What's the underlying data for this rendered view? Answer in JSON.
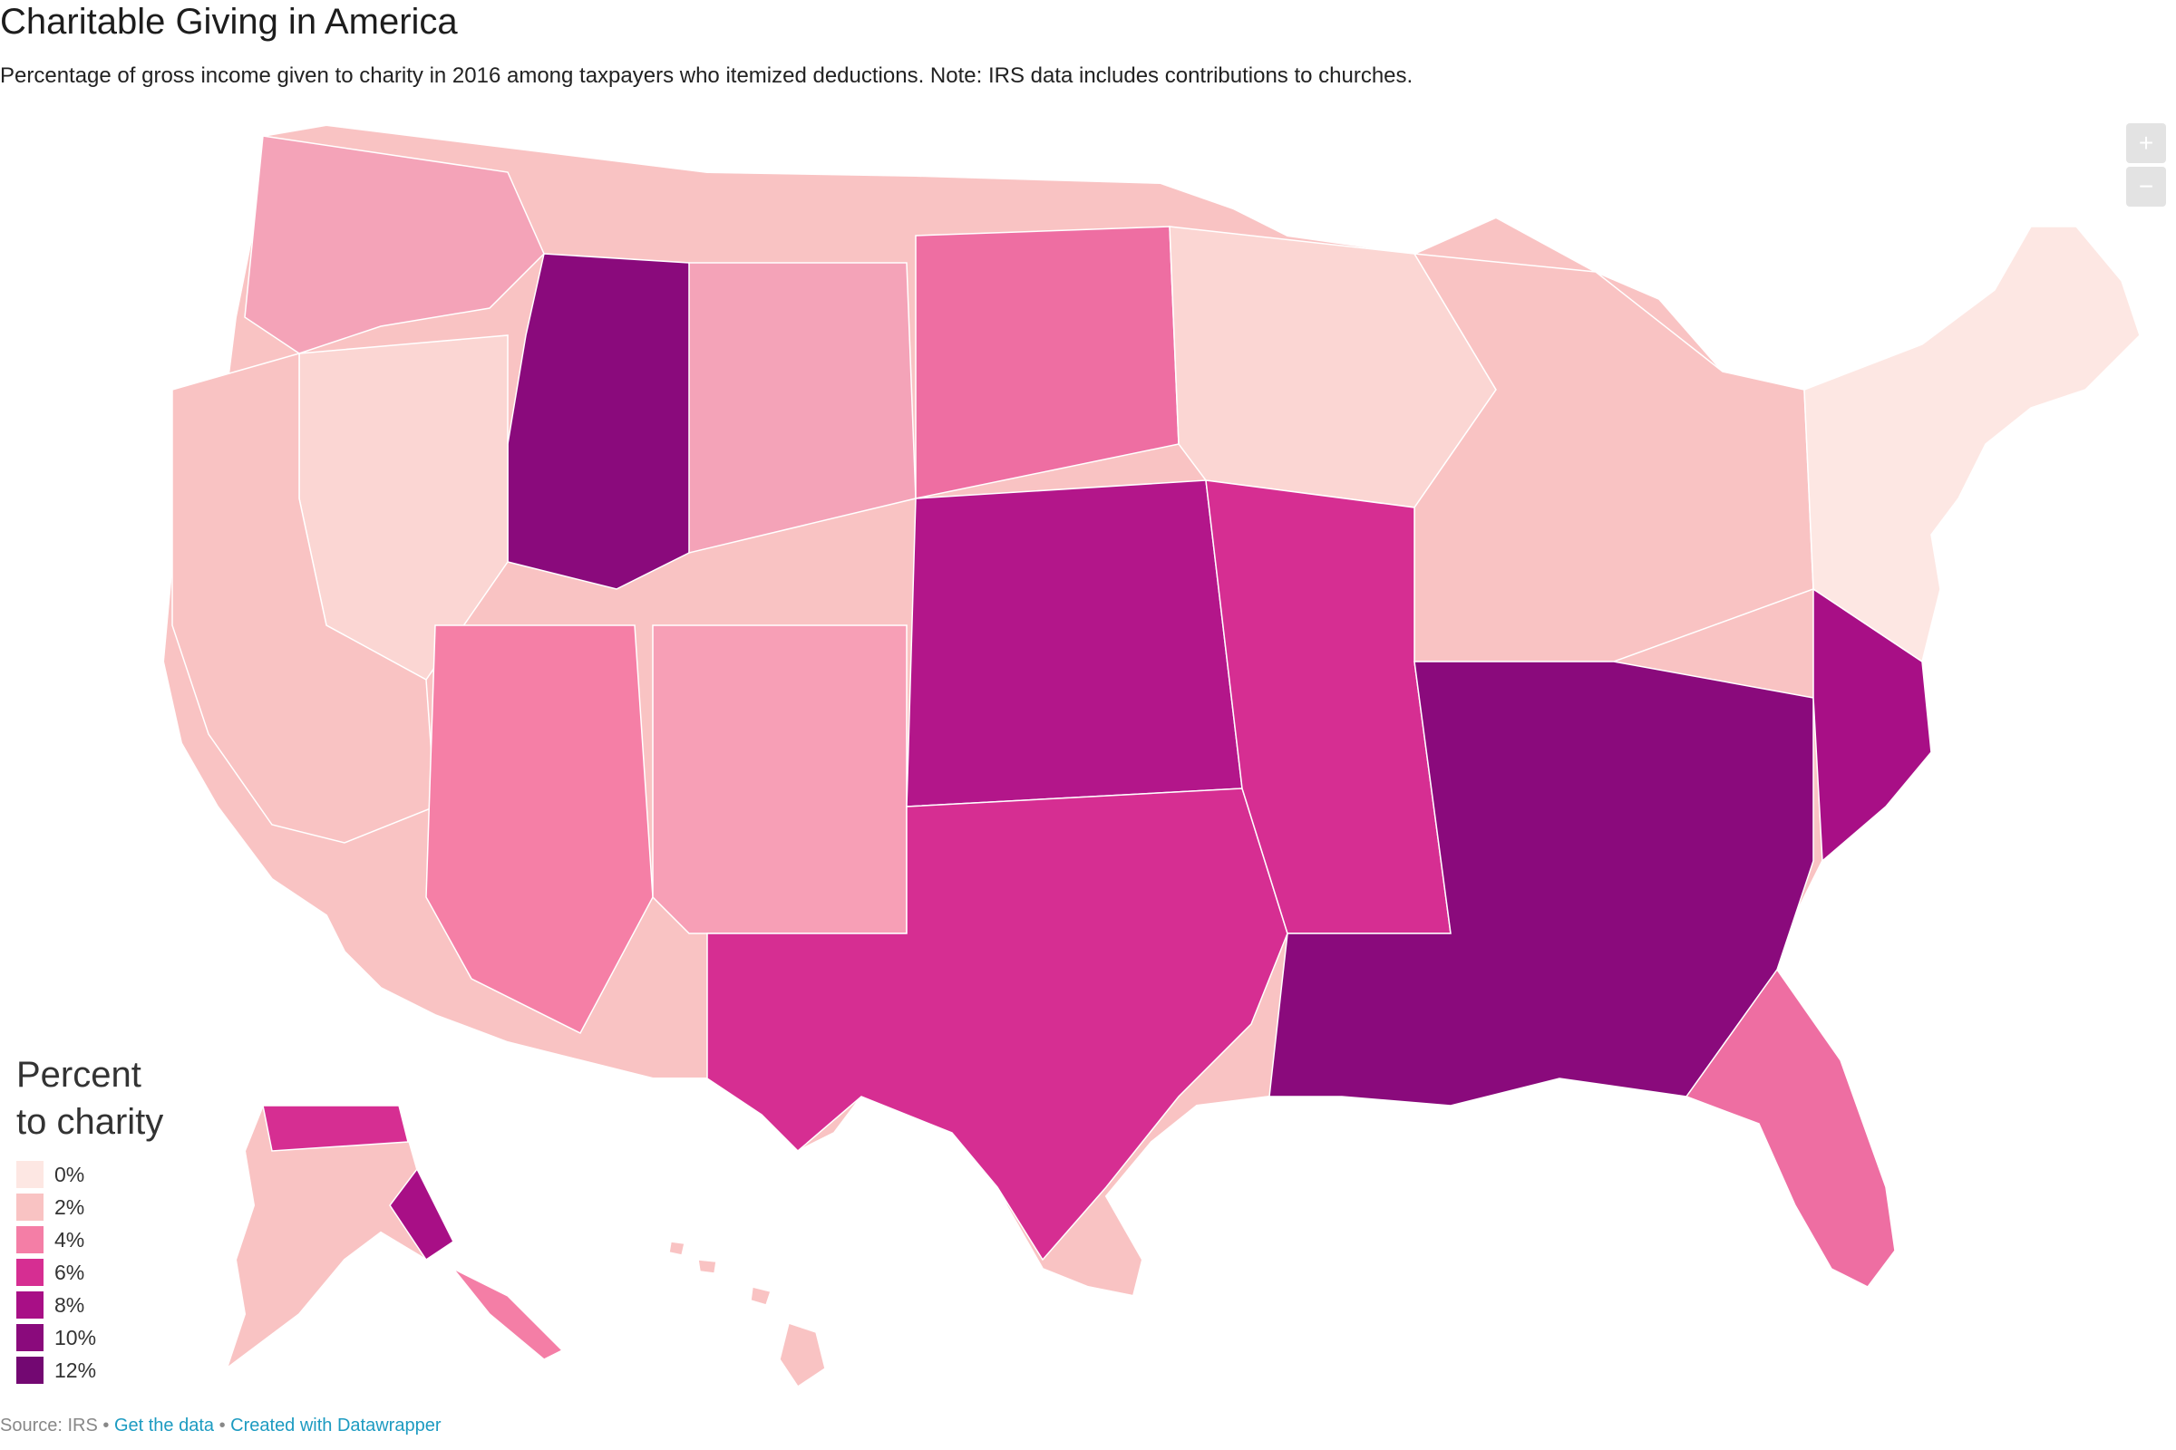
{
  "title": "Charitable Giving in America",
  "subtitle": "Percentage of gross income given to charity in 2016 among taxpayers who itemized deductions. Note: IRS data includes contributions to churches.",
  "zoom": {
    "in_label": "+",
    "out_label": "−"
  },
  "legend": {
    "title_line1": "Percent",
    "title_line2": "to charity",
    "items": [
      {
        "label": "0%",
        "color": "#fde7e3"
      },
      {
        "label": "2%",
        "color": "#f9c3c3"
      },
      {
        "label": "4%",
        "color": "#f47ea6"
      },
      {
        "label": "6%",
        "color": "#d62e92"
      },
      {
        "label": "8%",
        "color": "#a80f86"
      },
      {
        "label": "10%",
        "color": "#8a0a7c"
      },
      {
        "label": "12%",
        "color": "#730872"
      }
    ],
    "no_data_color": "#d6d6d6"
  },
  "footer": {
    "source": "Source: IRS",
    "separator": " • ",
    "get_data": "Get the data",
    "created_with": "Created with Datawrapper"
  }
}
